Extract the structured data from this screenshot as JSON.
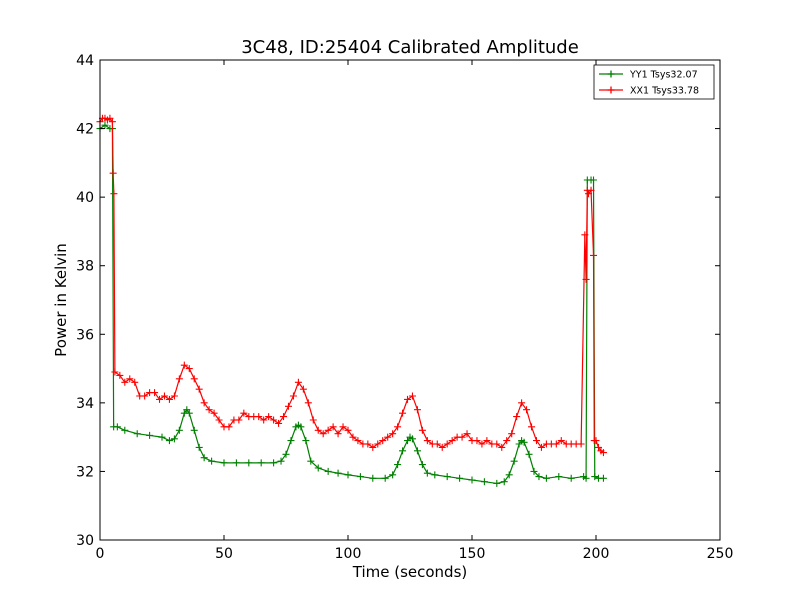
{
  "chart_data": {
    "type": "line",
    "title": "3C48, ID:25404 Calibrated Amplitude",
    "xlabel": "Time (seconds)",
    "ylabel": "Power in Kelvin",
    "xlim": [
      0,
      250
    ],
    "ylim": [
      30,
      44
    ],
    "xticks": [
      "0",
      "50",
      "100",
      "150",
      "200",
      "250"
    ],
    "yticks": [
      "30",
      "32",
      "34",
      "36",
      "38",
      "40",
      "42",
      "44"
    ],
    "grid": false,
    "legend_position": "top-right",
    "marker": "+",
    "series": [
      {
        "name": "YY1 Tsys32.07",
        "color": "#008000",
        "points": [
          [
            0,
            42.0
          ],
          [
            2,
            42.1
          ],
          [
            4,
            42.0
          ],
          [
            5,
            42.0
          ],
          [
            5.5,
            33.3
          ],
          [
            7,
            33.3
          ],
          [
            10,
            33.2
          ],
          [
            15,
            33.1
          ],
          [
            20,
            33.05
          ],
          [
            25,
            33.0
          ],
          [
            28,
            32.9
          ],
          [
            30,
            32.95
          ],
          [
            32,
            33.2
          ],
          [
            34,
            33.7
          ],
          [
            35,
            33.8
          ],
          [
            36,
            33.7
          ],
          [
            38,
            33.2
          ],
          [
            40,
            32.7
          ],
          [
            42,
            32.4
          ],
          [
            45,
            32.3
          ],
          [
            50,
            32.25
          ],
          [
            55,
            32.25
          ],
          [
            60,
            32.25
          ],
          [
            65,
            32.25
          ],
          [
            70,
            32.25
          ],
          [
            73,
            32.3
          ],
          [
            75,
            32.5
          ],
          [
            77,
            32.9
          ],
          [
            79,
            33.3
          ],
          [
            80,
            33.35
          ],
          [
            81,
            33.3
          ],
          [
            83,
            32.9
          ],
          [
            85,
            32.3
          ],
          [
            88,
            32.1
          ],
          [
            92,
            32.0
          ],
          [
            96,
            31.95
          ],
          [
            100,
            31.9
          ],
          [
            105,
            31.85
          ],
          [
            110,
            31.8
          ],
          [
            115,
            31.8
          ],
          [
            118,
            31.9
          ],
          [
            120,
            32.2
          ],
          [
            122,
            32.6
          ],
          [
            124,
            32.9
          ],
          [
            125,
            33.0
          ],
          [
            126,
            32.95
          ],
          [
            128,
            32.6
          ],
          [
            130,
            32.2
          ],
          [
            132,
            31.95
          ],
          [
            135,
            31.9
          ],
          [
            140,
            31.85
          ],
          [
            145,
            31.8
          ],
          [
            150,
            31.75
          ],
          [
            155,
            31.7
          ],
          [
            160,
            31.65
          ],
          [
            163,
            31.7
          ],
          [
            165,
            31.9
          ],
          [
            167,
            32.3
          ],
          [
            169,
            32.8
          ],
          [
            170,
            32.9
          ],
          [
            171,
            32.85
          ],
          [
            173,
            32.5
          ],
          [
            175,
            32.0
          ],
          [
            177,
            31.85
          ],
          [
            180,
            31.8
          ],
          [
            185,
            31.85
          ],
          [
            190,
            31.8
          ],
          [
            195,
            31.85
          ],
          [
            196,
            31.8
          ],
          [
            196.5,
            40.5
          ],
          [
            198,
            40.5
          ],
          [
            199,
            40.5
          ],
          [
            199.5,
            31.85
          ],
          [
            201,
            31.8
          ],
          [
            203,
            31.8
          ]
        ]
      },
      {
        "name": "XX1 Tsys33.78",
        "color": "#ff0000",
        "points": [
          [
            0,
            42.2
          ],
          [
            1,
            42.3
          ],
          [
            2,
            42.3
          ],
          [
            3,
            42.25
          ],
          [
            4,
            42.3
          ],
          [
            5,
            42.2
          ],
          [
            5.3,
            40.7
          ],
          [
            5.6,
            40.1
          ],
          [
            6,
            34.9
          ],
          [
            8,
            34.8
          ],
          [
            10,
            34.6
          ],
          [
            12,
            34.7
          ],
          [
            14,
            34.6
          ],
          [
            16,
            34.2
          ],
          [
            18,
            34.2
          ],
          [
            20,
            34.3
          ],
          [
            22,
            34.3
          ],
          [
            24,
            34.1
          ],
          [
            26,
            34.2
          ],
          [
            28,
            34.1
          ],
          [
            30,
            34.2
          ],
          [
            32,
            34.7
          ],
          [
            34,
            35.1
          ],
          [
            36,
            35.0
          ],
          [
            38,
            34.7
          ],
          [
            40,
            34.4
          ],
          [
            42,
            34.0
          ],
          [
            44,
            33.8
          ],
          [
            46,
            33.7
          ],
          [
            48,
            33.5
          ],
          [
            50,
            33.3
          ],
          [
            52,
            33.3
          ],
          [
            54,
            33.5
          ],
          [
            56,
            33.5
          ],
          [
            58,
            33.7
          ],
          [
            60,
            33.6
          ],
          [
            62,
            33.6
          ],
          [
            64,
            33.6
          ],
          [
            66,
            33.5
          ],
          [
            68,
            33.6
          ],
          [
            70,
            33.5
          ],
          [
            72,
            33.4
          ],
          [
            74,
            33.6
          ],
          [
            76,
            33.9
          ],
          [
            78,
            34.2
          ],
          [
            80,
            34.6
          ],
          [
            82,
            34.4
          ],
          [
            84,
            34.0
          ],
          [
            86,
            33.5
          ],
          [
            88,
            33.2
          ],
          [
            90,
            33.1
          ],
          [
            92,
            33.2
          ],
          [
            94,
            33.3
          ],
          [
            96,
            33.1
          ],
          [
            98,
            33.3
          ],
          [
            100,
            33.2
          ],
          [
            102,
            33.0
          ],
          [
            104,
            32.9
          ],
          [
            106,
            32.8
          ],
          [
            108,
            32.8
          ],
          [
            110,
            32.7
          ],
          [
            112,
            32.8
          ],
          [
            114,
            32.9
          ],
          [
            116,
            33.0
          ],
          [
            118,
            33.1
          ],
          [
            120,
            33.3
          ],
          [
            122,
            33.7
          ],
          [
            124,
            34.1
          ],
          [
            126,
            34.2
          ],
          [
            128,
            33.8
          ],
          [
            130,
            33.2
          ],
          [
            132,
            32.9
          ],
          [
            134,
            32.8
          ],
          [
            136,
            32.8
          ],
          [
            138,
            32.7
          ],
          [
            140,
            32.8
          ],
          [
            142,
            32.9
          ],
          [
            144,
            33.0
          ],
          [
            146,
            33.0
          ],
          [
            148,
            33.1
          ],
          [
            150,
            32.9
          ],
          [
            152,
            32.9
          ],
          [
            154,
            32.8
          ],
          [
            156,
            32.9
          ],
          [
            158,
            32.8
          ],
          [
            160,
            32.8
          ],
          [
            162,
            32.7
          ],
          [
            164,
            32.9
          ],
          [
            166,
            33.1
          ],
          [
            168,
            33.6
          ],
          [
            170,
            34.0
          ],
          [
            172,
            33.8
          ],
          [
            174,
            33.3
          ],
          [
            176,
            32.9
          ],
          [
            178,
            32.7
          ],
          [
            180,
            32.8
          ],
          [
            182,
            32.8
          ],
          [
            184,
            32.8
          ],
          [
            186,
            32.9
          ],
          [
            188,
            32.8
          ],
          [
            190,
            32.8
          ],
          [
            192,
            32.8
          ],
          [
            194,
            32.8
          ],
          [
            195.5,
            38.9
          ],
          [
            196,
            37.6
          ],
          [
            196.5,
            40.2
          ],
          [
            197,
            40.1
          ],
          [
            198,
            40.2
          ],
          [
            199,
            38.3
          ],
          [
            199.3,
            32.9
          ],
          [
            200,
            32.9
          ],
          [
            201,
            32.7
          ],
          [
            202,
            32.6
          ],
          [
            203,
            32.55
          ]
        ]
      }
    ]
  }
}
